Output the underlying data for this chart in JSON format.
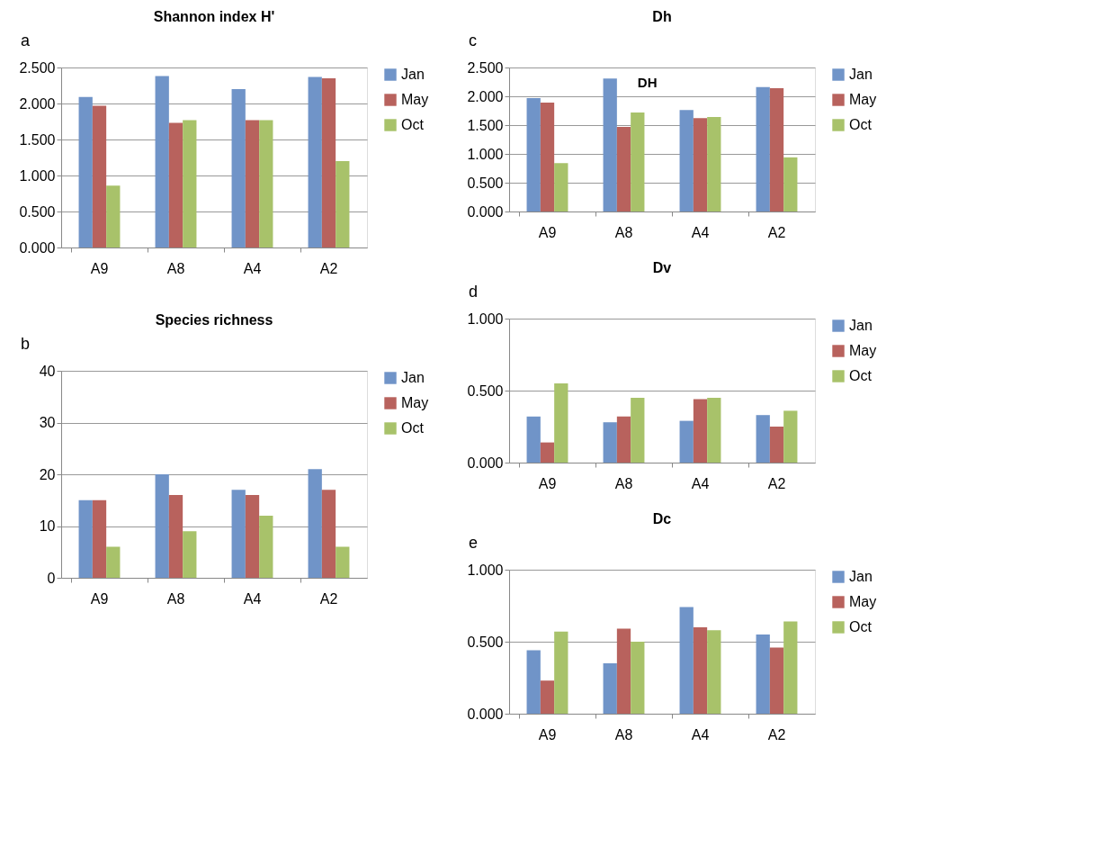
{
  "chart_data": [
    {
      "type": "bar",
      "title": "Shannon index H'",
      "annotations": [
        "a"
      ],
      "categories": [
        "A9",
        "A8",
        "A4",
        "A2"
      ],
      "series": [
        {
          "name": "Jan",
          "color": "#7094c8",
          "values": [
            2.09,
            2.38,
            2.2,
            2.37
          ]
        },
        {
          "name": "May",
          "color": "#b8625d",
          "values": [
            1.97,
            1.73,
            1.77,
            2.35
          ]
        },
        {
          "name": "Oct",
          "color": "#a8c26a",
          "values": [
            0.86,
            1.77,
            1.77,
            1.2
          ]
        }
      ],
      "ylim": [
        0,
        2.5
      ],
      "yticks": [
        {
          "value": 0,
          "label": "0.000"
        },
        {
          "value": 0.5,
          "label": "0.500"
        },
        {
          "value": 1,
          "label": "1.000"
        },
        {
          "value": 1.5,
          "label": "1.500"
        },
        {
          "value": 2,
          "label": "2.000"
        },
        {
          "value": 2.5,
          "label": "2.500"
        }
      ],
      "grid": "y",
      "legend": "right"
    },
    {
      "type": "bar",
      "title": "Species richness",
      "annotations": [
        "b"
      ],
      "categories": [
        "A9",
        "A8",
        "A4",
        "A2"
      ],
      "series": [
        {
          "name": "Jan",
          "color": "#7094c8",
          "values": [
            15,
            20,
            17,
            21
          ]
        },
        {
          "name": "May",
          "color": "#b8625d",
          "values": [
            15,
            16,
            16,
            17
          ]
        },
        {
          "name": "Oct",
          "color": "#a8c26a",
          "values": [
            6,
            9,
            12,
            6
          ]
        }
      ],
      "ylim": [
        0,
        40
      ],
      "yticks": [
        0,
        10,
        20,
        30,
        40
      ],
      "grid": "y",
      "legend": "right"
    },
    {
      "type": "bar",
      "title": "Dh",
      "annotations": [
        "c",
        "DH"
      ],
      "categories": [
        "A9",
        "A8",
        "A4",
        "A2"
      ],
      "series": [
        {
          "name": "Jan",
          "color": "#7094c8",
          "values": [
            1.97,
            2.31,
            1.76,
            2.16
          ]
        },
        {
          "name": "May",
          "color": "#b8625d",
          "values": [
            1.89,
            1.47,
            1.62,
            2.14
          ]
        },
        {
          "name": "Oct",
          "color": "#a8c26a",
          "values": [
            0.84,
            1.72,
            1.64,
            0.94
          ]
        }
      ],
      "ylim": [
        0,
        2.5
      ],
      "yticks": [
        {
          "value": 0,
          "label": "0.000"
        },
        {
          "value": 0.5,
          "label": "0.500"
        },
        {
          "value": 1,
          "label": "1.000"
        },
        {
          "value": 1.5,
          "label": "1.500"
        },
        {
          "value": 2,
          "label": "2.000"
        },
        {
          "value": 2.5,
          "label": "2.500"
        }
      ],
      "grid": "y",
      "legend": "right"
    },
    {
      "type": "bar",
      "title": "Dv",
      "annotations": [
        "d"
      ],
      "categories": [
        "A9",
        "A8",
        "A4",
        "A2"
      ],
      "series": [
        {
          "name": "Jan",
          "color": "#7094c8",
          "values": [
            0.32,
            0.28,
            0.29,
            0.33
          ]
        },
        {
          "name": "May",
          "color": "#b8625d",
          "values": [
            0.14,
            0.32,
            0.44,
            0.25
          ]
        },
        {
          "name": "Oct",
          "color": "#a8c26a",
          "values": [
            0.55,
            0.45,
            0.45,
            0.36
          ]
        }
      ],
      "ylim": [
        0,
        1
      ],
      "yticks": [
        {
          "value": 0,
          "label": "0.000"
        },
        {
          "value": 0.5,
          "label": "0.500"
        },
        {
          "value": 1,
          "label": "1.000"
        }
      ],
      "grid": "y",
      "legend": "right"
    },
    {
      "type": "bar",
      "title": "Dc",
      "annotations": [
        "e"
      ],
      "categories": [
        "A9",
        "A8",
        "A4",
        "A2"
      ],
      "series": [
        {
          "name": "Jan",
          "color": "#7094c8",
          "values": [
            0.44,
            0.35,
            0.74,
            0.55
          ]
        },
        {
          "name": "May",
          "color": "#b8625d",
          "values": [
            0.23,
            0.59,
            0.6,
            0.46
          ]
        },
        {
          "name": "Oct",
          "color": "#a8c26a",
          "values": [
            0.57,
            0.5,
            0.58,
            0.64
          ]
        }
      ],
      "ylim": [
        0,
        1
      ],
      "yticks": [
        {
          "value": 0,
          "label": "0.000"
        },
        {
          "value": 0.5,
          "label": "0.500"
        },
        {
          "value": 1,
          "label": "1.000"
        }
      ],
      "grid": "y",
      "legend": "right"
    }
  ]
}
